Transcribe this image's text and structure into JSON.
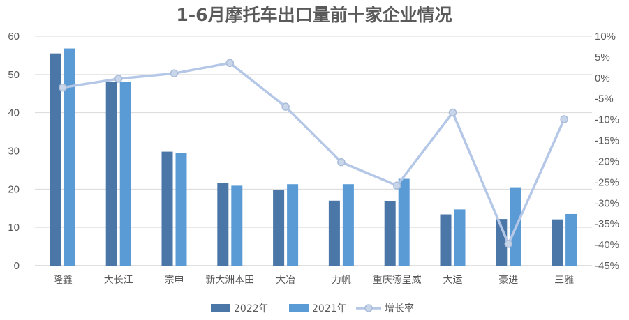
{
  "chart_data": {
    "type": "bar",
    "title": "1-6月摩托车出口量前十家企业情况",
    "categories": [
      "隆鑫",
      "大长江",
      "宗申",
      "新大洲本田",
      "大冶",
      "力帆",
      "重庆德呈威",
      "大运",
      "豪进",
      "三雅"
    ],
    "series": [
      {
        "name": "2022年",
        "type": "bar",
        "axis": "left",
        "color": "#4a76a8",
        "values": [
          55.5,
          48.0,
          29.8,
          21.6,
          19.8,
          17.0,
          16.9,
          13.4,
          12.2,
          12.1
        ]
      },
      {
        "name": "2021年",
        "type": "bar",
        "axis": "left",
        "color": "#5b9bd5",
        "values": [
          56.8,
          48.1,
          29.5,
          20.9,
          21.3,
          21.3,
          22.7,
          14.7,
          20.5,
          13.5
        ]
      },
      {
        "name": "增长率",
        "type": "line",
        "axis": "right",
        "color": "#b4c7e7",
        "values": [
          -2.3,
          -0.2,
          1.1,
          3.6,
          -6.9,
          -20.2,
          -25.8,
          -8.3,
          -39.8,
          -9.9
        ]
      }
    ],
    "yleft": {
      "min": 0,
      "max": 60,
      "step": 10,
      "ticks": [
        "0",
        "10",
        "20",
        "30",
        "40",
        "50",
        "60"
      ]
    },
    "yright": {
      "min": -45,
      "max": 10,
      "step": 5,
      "ticks": [
        "-45%",
        "-40%",
        "-35%",
        "-30%",
        "-25%",
        "-20%",
        "-15%",
        "-10%",
        "-5%",
        "0%",
        "5%",
        "10%"
      ]
    },
    "grid": true,
    "legend": "bottom"
  }
}
